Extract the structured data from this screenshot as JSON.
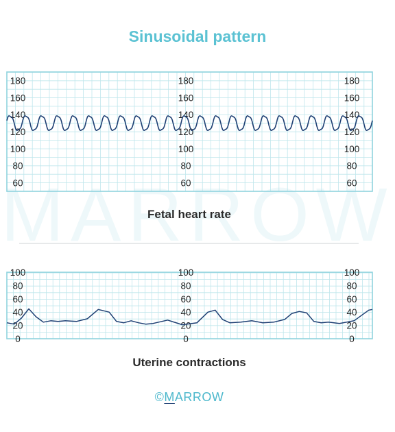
{
  "title": "Sinusoidal pattern",
  "brand": {
    "symbol": "©",
    "first_letter": "M",
    "rest": "ARROW"
  },
  "watermark": "MARROW",
  "colors": {
    "grid": "#bfe6ec",
    "frame": "#8fd3de",
    "trace": "#1d3f73",
    "title": "#5bc2d3"
  },
  "chart_data": [
    {
      "type": "line",
      "name": "fetal-heart-rate",
      "title": "Fetal heart rate",
      "xlabel": "",
      "ylabel": "",
      "ylim": [
        50,
        190
      ],
      "yticks": [
        60,
        80,
        100,
        120,
        140,
        160,
        180
      ],
      "tick_label_columns": 3,
      "grid": true,
      "series": [
        {
          "pattern": "sinusoidal",
          "baseline": 130,
          "amplitude": 9,
          "cycles": 23
        }
      ]
    },
    {
      "type": "line",
      "name": "uterine-contractions",
      "title": "Uterine contractions",
      "xlabel": "",
      "ylabel": "",
      "ylim": [
        0,
        100
      ],
      "yticks": [
        0,
        20,
        40,
        60,
        80,
        100
      ],
      "tick_label_columns": 3,
      "grid": true,
      "series": [
        {
          "x": [
            0,
            2,
            4,
            6,
            8,
            10,
            12,
            14,
            16,
            19,
            22,
            25,
            28,
            30,
            32,
            34,
            36,
            38,
            40,
            44,
            48,
            52,
            55,
            57,
            59,
            61,
            64,
            67,
            70,
            73,
            76,
            78,
            80,
            82,
            84,
            86,
            88,
            91,
            95,
            99,
            100
          ],
          "values": [
            24,
            22,
            31,
            45,
            33,
            25,
            27,
            26,
            27,
            26,
            30,
            44,
            40,
            26,
            24,
            27,
            24,
            22,
            23,
            28,
            21,
            24,
            40,
            43,
            29,
            24,
            25,
            27,
            24,
            25,
            29,
            38,
            41,
            39,
            26,
            24,
            25,
            23,
            27,
            43,
            44
          ]
        }
      ]
    }
  ]
}
